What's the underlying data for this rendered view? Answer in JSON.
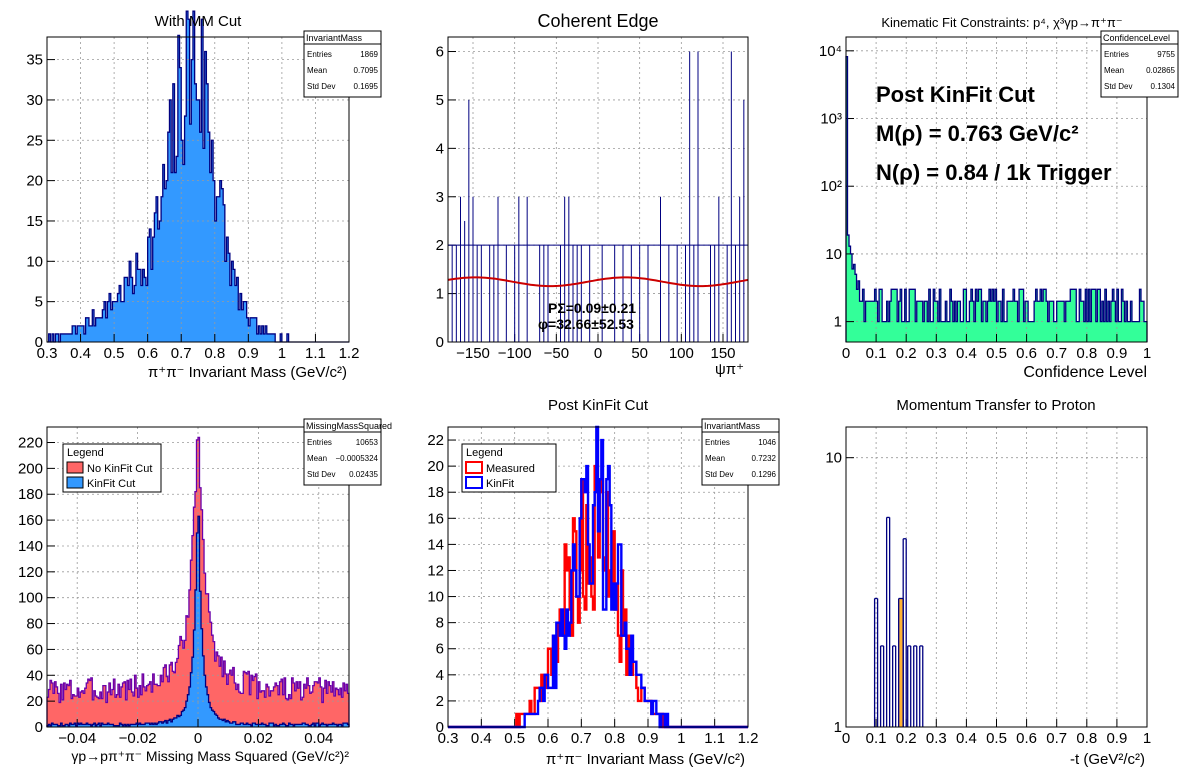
{
  "colors": {
    "frame": "#000000",
    "grid": "#9a9a9a",
    "navy": "#000080",
    "azure": "#3399ff",
    "salmon": "#ff6666",
    "mint": "#33ff99",
    "orange": "#ffb233",
    "red": "#ff0000",
    "blue": "#0000ff",
    "fit_red": "#cc0000",
    "purple_line": "#6a00aa"
  },
  "chart_data": [
    {
      "id": "p1",
      "type": "bar",
      "title": "With MM Cut",
      "xlabel": "π⁺π⁻ Invariant Mass (GeV/c²)",
      "ylabel": "",
      "xlim": [
        0.3,
        1.2
      ],
      "ylim": [
        0,
        37.8
      ],
      "log_y": false,
      "grid": true,
      "xticks": [
        "0.3",
        "0.4",
        "0.5",
        "0.6",
        "0.7",
        "0.8",
        "0.9",
        "1",
        "1.1",
        "1.2"
      ],
      "xtick_values": [
        0.3,
        0.4,
        0.5,
        0.6,
        0.7,
        0.8,
        0.9,
        1.0,
        1.1,
        1.2
      ],
      "yticks": [
        "0",
        "5",
        "10",
        "15",
        "20",
        "25",
        "30",
        "35"
      ],
      "ytick_values": [
        0,
        5,
        10,
        15,
        20,
        25,
        30,
        35
      ],
      "stats": {
        "name": "InvariantMass",
        "rows": [
          [
            "Entries",
            "1869"
          ],
          [
            "Mean",
            "0.7095"
          ],
          [
            "Std Dev",
            "0.1695"
          ]
        ]
      },
      "histogram": {
        "bin_width": 0.005,
        "fill": "azure",
        "line": "navy",
        "mode": "gauss",
        "components": [
          {
            "amp": 26,
            "mean": 0.74,
            "sigma": 0.06
          },
          {
            "amp": 10,
            "mean": 0.66,
            "sigma": 0.14
          }
        ],
        "noise": 0.35,
        "seed": 7,
        "peak_bin_at": 0.77,
        "peak_value": 36
      }
    },
    {
      "id": "p2",
      "type": "line",
      "title": "Coherent Edge",
      "xlabel": "ψπ⁺",
      "ylabel": "",
      "xlim": [
        -180,
        180
      ],
      "ylim": [
        0,
        6.3
      ],
      "log_y": false,
      "grid": true,
      "xticks": [
        "−150",
        "−100",
        "−50",
        "0",
        "50",
        "100",
        "150"
      ],
      "xtick_values": [
        -150,
        -100,
        -50,
        0,
        50,
        100,
        150
      ],
      "yticks": [
        "0",
        "1",
        "2",
        "3",
        "4",
        "5",
        "6"
      ],
      "ytick_values": [
        0,
        1,
        2,
        3,
        4,
        5,
        6
      ],
      "series": [
        {
          "kind": "error-bars",
          "baseline": 2,
          "x": [
            -165,
            -160,
            -155,
            -150,
            -140,
            -130,
            -120,
            -100,
            -95,
            -85,
            -70,
            -65,
            -40,
            -35,
            -30,
            -25,
            -10,
            20,
            40,
            60,
            75,
            95,
            110,
            115,
            120,
            135,
            145,
            155,
            160,
            170,
            175,
            -175,
            -170,
            -145,
            -125,
            -110,
            -60,
            -45,
            -20,
            5,
            30,
            50,
            85,
            105,
            140,
            165
          ],
          "y": [
            3,
            2.5,
            5,
            3,
            2,
            2,
            3,
            2,
            3,
            3,
            2,
            2,
            3,
            3,
            2,
            2,
            2,
            2,
            2,
            2,
            3,
            2,
            6,
            2,
            6,
            2,
            3,
            2,
            6,
            3,
            5,
            2,
            2,
            2,
            2,
            2,
            2,
            2,
            2,
            2,
            2,
            2,
            2,
            2,
            2,
            2
          ]
        },
        {
          "kind": "fit",
          "name": "",
          "formula": "1.245 + 0.09*cos(2*(x - 32.66))"
        }
      ],
      "annotations": [
        "PΣ=0.09±0.21",
        "φ=32.66±52.53"
      ]
    },
    {
      "id": "p3",
      "type": "bar",
      "title": "Kinematic Fit Constraints: p⁴, χ³γp→π⁺π⁻",
      "xlabel": "Confidence Level",
      "ylabel": "",
      "xlim": [
        0,
        1
      ],
      "ylim": [
        0.5,
        16000
      ],
      "log_y": true,
      "grid": true,
      "xticks": [
        "0",
        "0.1",
        "0.2",
        "0.3",
        "0.4",
        "0.5",
        "0.6",
        "0.7",
        "0.8",
        "0.9",
        "1"
      ],
      "xtick_values": [
        0,
        0.1,
        0.2,
        0.3,
        0.4,
        0.5,
        0.6,
        0.7,
        0.8,
        0.9,
        1
      ],
      "yticks": [
        "1",
        "10",
        "10²",
        "10³",
        "10⁴"
      ],
      "ytick_values": [
        1,
        10,
        100,
        1000,
        10000
      ],
      "stats": {
        "name": "ConfidenceLevel",
        "rows": [
          [
            "Entries",
            "9755"
          ],
          [
            "Mean",
            "0.02865"
          ],
          [
            "Std Dev",
            "0.1304"
          ]
        ]
      },
      "annotations": [
        "Post KinFit Cut",
        "M(ρ) = 0.763 GeV/c²",
        "N(ρ) = 0.84 / 1k Trigger"
      ],
      "histogram": {
        "bin_width": 0.005,
        "fill": "mint",
        "line": "navy",
        "mode": "confidence",
        "first_bin": 8200,
        "seed": 11
      }
    },
    {
      "id": "p4",
      "type": "area",
      "title": "",
      "xlabel": "γp→pπ⁺π⁻ Missing Mass Squared (GeV/c²)²",
      "ylabel": "",
      "xlim": [
        -0.05,
        0.05
      ],
      "ylim": [
        0,
        232
      ],
      "log_y": false,
      "grid": true,
      "xticks": [
        "−0.04",
        "−0.02",
        "0",
        "0.02",
        "0.04"
      ],
      "xtick_values": [
        -0.04,
        -0.02,
        0,
        0.02,
        0.04
      ],
      "yticks": [
        "0",
        "20",
        "40",
        "60",
        "80",
        "100",
        "120",
        "140",
        "160",
        "180",
        "200",
        "220"
      ],
      "ytick_values": [
        0,
        20,
        40,
        60,
        80,
        100,
        120,
        140,
        160,
        180,
        200,
        220
      ],
      "stats": {
        "name": "MissingMassSquared",
        "rows": [
          [
            "Entries",
            "10653"
          ],
          [
            "Mean",
            "−0.0005324"
          ],
          [
            "Std Dev",
            "0.02435"
          ]
        ]
      },
      "legend": {
        "title": "Legend",
        "placement": "top-left",
        "items": [
          {
            "label": "No KinFit Cut",
            "color": "salmon"
          },
          {
            "label": "KinFit Cut",
            "color": "azure"
          }
        ]
      },
      "series": [
        {
          "name": "No KinFit Cut",
          "bin_width": 0.0005,
          "fill": "salmon",
          "line": "purple_line",
          "mode": "mm_nocut",
          "seed": 3,
          "peak": 224
        },
        {
          "name": "KinFit Cut",
          "bin_width": 0.0005,
          "fill": "azure",
          "line": "navy",
          "mode": "mm_cut",
          "seed": 5,
          "peak": 163
        }
      ]
    },
    {
      "id": "p5",
      "type": "line",
      "title": "Post KinFit Cut",
      "xlabel": "π⁺π⁻ Invariant Mass (GeV/c²)",
      "ylabel": "",
      "xlim": [
        0.3,
        1.2
      ],
      "ylim": [
        0,
        23
      ],
      "log_y": false,
      "grid": true,
      "xticks": [
        "0.3",
        "0.4",
        "0.5",
        "0.6",
        "0.7",
        "0.8",
        "0.9",
        "1",
        "1.1",
        "1.2"
      ],
      "xtick_values": [
        0.3,
        0.4,
        0.5,
        0.6,
        0.7,
        0.8,
        0.9,
        1.0,
        1.1,
        1.2
      ],
      "yticks": [
        "0",
        "2",
        "4",
        "6",
        "8",
        "10",
        "12",
        "14",
        "16",
        "18",
        "20",
        "22"
      ],
      "ytick_values": [
        0,
        2,
        4,
        6,
        8,
        10,
        12,
        14,
        16,
        18,
        20,
        22
      ],
      "stats": {
        "name": "InvariantMass",
        "rows": [
          [
            "Entries",
            "1046"
          ],
          [
            "Mean",
            "0.7232"
          ],
          [
            "Std Dev",
            "0.1296"
          ]
        ]
      },
      "legend": {
        "title": "Legend",
        "placement": "top-left",
        "items": [
          {
            "label": "Measured",
            "color": "red"
          },
          {
            "label": "KinFit",
            "color": "blue"
          }
        ]
      },
      "series": [
        {
          "name": "Measured",
          "bin_width": 0.005,
          "line": "red",
          "mode": "gauss",
          "components": [
            {
              "amp": 15,
              "mean": 0.73,
              "sigma": 0.085
            }
          ],
          "noise": 0.45,
          "seed": 21
        },
        {
          "name": "KinFit",
          "bin_width": 0.005,
          "line": "blue",
          "mode": "gauss",
          "components": [
            {
              "amp": 16,
              "mean": 0.74,
              "sigma": 0.08
            }
          ],
          "noise": 0.45,
          "seed": 42,
          "peak_bin_at": 0.76,
          "peak_value": 22
        }
      ]
    },
    {
      "id": "p6",
      "type": "bar",
      "title": "Momentum Transfer to Proton",
      "xlabel": "-t (GeV²/c²)",
      "ylabel": "",
      "xlim": [
        0,
        1
      ],
      "ylim": [
        1,
        13
      ],
      "log_y": true,
      "grid": true,
      "xticks": [
        "0",
        "0.1",
        "0.2",
        "0.3",
        "0.4",
        "0.5",
        "0.6",
        "0.7",
        "0.8",
        "0.9",
        "1"
      ],
      "xtick_values": [
        0,
        0.1,
        0.2,
        0.3,
        0.4,
        0.5,
        0.6,
        0.7,
        0.8,
        0.9,
        1
      ],
      "yticks": [
        "1",
        "10"
      ],
      "ytick_values": [
        1,
        10
      ],
      "bars": [
        {
          "x0": 0.095,
          "x1": 0.105,
          "value": 3,
          "fill": ""
        },
        {
          "x0": 0.115,
          "x1": 0.125,
          "value": 2,
          "fill": ""
        },
        {
          "x0": 0.135,
          "x1": 0.145,
          "value": 6,
          "fill": ""
        },
        {
          "x0": 0.155,
          "x1": 0.165,
          "value": 2,
          "fill": ""
        },
        {
          "x0": 0.175,
          "x1": 0.19,
          "value": 3,
          "fill": "orange"
        },
        {
          "x0": 0.19,
          "x1": 0.2,
          "value": 5,
          "fill": ""
        },
        {
          "x0": 0.205,
          "x1": 0.215,
          "value": 2,
          "fill": ""
        },
        {
          "x0": 0.225,
          "x1": 0.235,
          "value": 2,
          "fill": ""
        },
        {
          "x0": 0.245,
          "x1": 0.255,
          "value": 2,
          "fill": ""
        }
      ]
    }
  ]
}
